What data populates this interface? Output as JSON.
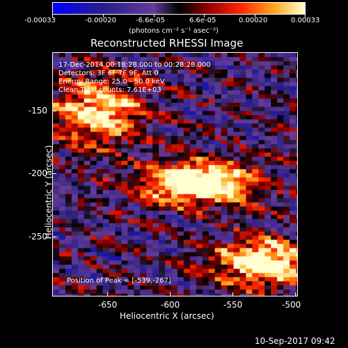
{
  "colorbar": {
    "labels": [
      "-0.00033",
      "-0.00020",
      "-6.6e-05",
      "6.6e-05",
      "0.00020",
      "0.00033"
    ],
    "units": "(photons cm⁻² s⁻¹ asec⁻²)"
  },
  "title": "Reconstructed RHESSI Image",
  "info": {
    "time": "17-Dec-2014 00:18:28.000 to 00:28:28.000",
    "detectors": "Detectors: 3F 6F 7F 9F, Att 0",
    "energy": "Energy Range: 25.0 - 50.0 keV",
    "clean": "Clean    Total counts: 7.61E+03",
    "peak": "Position of Peak = [-539,-267]"
  },
  "axes": {
    "xlabel": "Heliocentric X (arcsec)",
    "ylabel": "Heliocentric Y (arcsec)",
    "xticks": [
      "-650",
      "-600",
      "-550",
      "-500"
    ],
    "yticks": [
      "-150",
      "-200",
      "-250"
    ]
  },
  "timestamp": "10-Sep-2017 09:42",
  "colors": {
    "background": "#000000",
    "text": "#ffffff"
  }
}
